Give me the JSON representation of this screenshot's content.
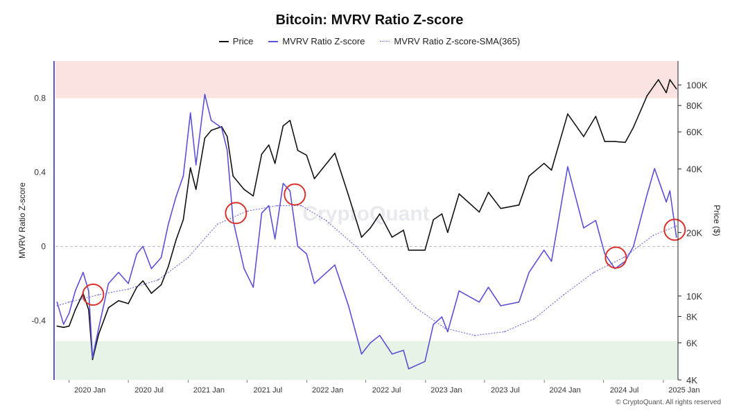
{
  "chart_data": {
    "type": "line",
    "title": "Bitcoin: MVRV Ratio Z-score",
    "ylabel": "MVRV Ratio Z-score",
    "y2label": "Price ($)",
    "ylim": [
      -0.72,
      1.0
    ],
    "y2lim_log": [
      4000,
      130000
    ],
    "xlim": [
      "2019-11-20",
      "2025-02-15"
    ],
    "x_ticks": [
      {
        "date": "2020-01-01",
        "label": "2020 Jan"
      },
      {
        "date": "2020-07-01",
        "label": "2020 Jul"
      },
      {
        "date": "2021-01-01",
        "label": "2021 Jan"
      },
      {
        "date": "2021-07-01",
        "label": "2021 Jul"
      },
      {
        "date": "2022-01-01",
        "label": "2022 Jan"
      },
      {
        "date": "2022-07-01",
        "label": "2022 Jul"
      },
      {
        "date": "2023-01-01",
        "label": "2023 Jan"
      },
      {
        "date": "2023-07-01",
        "label": "2023 Jul"
      },
      {
        "date": "2024-01-01",
        "label": "2024 Jan"
      },
      {
        "date": "2024-07-01",
        "label": "2024 Jul"
      },
      {
        "date": "2025-01-01",
        "label": "2025 Jan"
      }
    ],
    "y_ticks": [
      {
        "value": 0.8,
        "label": "0.8"
      },
      {
        "value": 0.4,
        "label": "0.4"
      },
      {
        "value": 0,
        "label": "0"
      },
      {
        "value": -0.4,
        "label": "-0.4"
      }
    ],
    "y2_ticks": [
      {
        "value": 100000,
        "label": "100K"
      },
      {
        "value": 80000,
        "label": "80K"
      },
      {
        "value": 60000,
        "label": "60K"
      },
      {
        "value": 40000,
        "label": "40K"
      },
      {
        "value": 20000,
        "label": "20K"
      },
      {
        "value": 10000,
        "label": "10K"
      },
      {
        "value": 8000,
        "label": "8K"
      },
      {
        "value": 6000,
        "label": "6K"
      },
      {
        "value": 4000,
        "label": "4K"
      }
    ],
    "bands": [
      {
        "name": "high",
        "from": 0.8,
        "to": 1.0,
        "color": "#fbe3e1"
      },
      {
        "name": "low",
        "from": -0.72,
        "to": -0.51,
        "color": "#e6f4e8"
      }
    ],
    "legend_position": "top-center",
    "series": [
      {
        "name": "Price",
        "axis": "right",
        "color": "#111111",
        "points": [
          [
            "2019-11-25",
            7200
          ],
          [
            "2019-12-15",
            7100
          ],
          [
            "2020-01-01",
            7200
          ],
          [
            "2020-01-20",
            8600
          ],
          [
            "2020-02-13",
            10300
          ],
          [
            "2020-03-01",
            8600
          ],
          [
            "2020-03-13",
            5000
          ],
          [
            "2020-04-01",
            6600
          ],
          [
            "2020-05-01",
            8800
          ],
          [
            "2020-06-01",
            9500
          ],
          [
            "2020-07-01",
            9200
          ],
          [
            "2020-07-27",
            11000
          ],
          [
            "2020-08-15",
            11800
          ],
          [
            "2020-09-10",
            10300
          ],
          [
            "2020-10-10",
            11300
          ],
          [
            "2020-11-01",
            13800
          ],
          [
            "2020-11-25",
            18500
          ],
          [
            "2020-12-17",
            23000
          ],
          [
            "2021-01-08",
            40500
          ],
          [
            "2021-01-25",
            32000
          ],
          [
            "2021-02-21",
            56000
          ],
          [
            "2021-03-13",
            61000
          ],
          [
            "2021-04-14",
            63500
          ],
          [
            "2021-05-01",
            57000
          ],
          [
            "2021-05-19",
            37000
          ],
          [
            "2021-06-22",
            32000
          ],
          [
            "2021-07-20",
            29800
          ],
          [
            "2021-08-15",
            47000
          ],
          [
            "2021-09-06",
            52000
          ],
          [
            "2021-09-25",
            42500
          ],
          [
            "2021-10-20",
            64000
          ],
          [
            "2021-11-10",
            68000
          ],
          [
            "2021-12-04",
            49000
          ],
          [
            "2021-12-31",
            46500
          ],
          [
            "2022-01-24",
            36000
          ],
          [
            "2022-03-28",
            47500
          ],
          [
            "2022-05-09",
            30000
          ],
          [
            "2022-06-18",
            19000
          ],
          [
            "2022-07-15",
            21000
          ],
          [
            "2022-08-13",
            24500
          ],
          [
            "2022-09-20",
            19000
          ],
          [
            "2022-10-25",
            20500
          ],
          [
            "2022-11-10",
            16500
          ],
          [
            "2022-12-30",
            16500
          ],
          [
            "2023-01-25",
            23000
          ],
          [
            "2023-02-20",
            24500
          ],
          [
            "2023-03-10",
            20000
          ],
          [
            "2023-04-14",
            30500
          ],
          [
            "2023-06-15",
            25000
          ],
          [
            "2023-07-13",
            31000
          ],
          [
            "2023-08-20",
            26000
          ],
          [
            "2023-10-15",
            27000
          ],
          [
            "2023-11-15",
            37000
          ],
          [
            "2023-12-31",
            42500
          ],
          [
            "2024-01-23",
            39500
          ],
          [
            "2024-03-13",
            73000
          ],
          [
            "2024-05-01",
            57000
          ],
          [
            "2024-06-07",
            71000
          ],
          [
            "2024-07-05",
            54000
          ],
          [
            "2024-08-05",
            54000
          ],
          [
            "2024-09-06",
            53500
          ],
          [
            "2024-10-01",
            63000
          ],
          [
            "2024-11-12",
            89000
          ],
          [
            "2024-12-05",
            100000
          ],
          [
            "2024-12-17",
            106000
          ],
          [
            "2025-01-10",
            92000
          ],
          [
            "2025-01-21",
            106000
          ],
          [
            "2025-02-10",
            96000
          ]
        ]
      },
      {
        "name": "MVRV Ratio Z-score",
        "axis": "left",
        "color": "#5b4fd6",
        "points": [
          [
            "2019-11-25",
            -0.3
          ],
          [
            "2019-12-15",
            -0.42
          ],
          [
            "2020-01-01",
            -0.36
          ],
          [
            "2020-01-20",
            -0.24
          ],
          [
            "2020-02-13",
            -0.14
          ],
          [
            "2020-03-01",
            -0.24
          ],
          [
            "2020-03-13",
            -0.6
          ],
          [
            "2020-04-01",
            -0.44
          ],
          [
            "2020-05-01",
            -0.2
          ],
          [
            "2020-06-01",
            -0.14
          ],
          [
            "2020-07-01",
            -0.2
          ],
          [
            "2020-07-27",
            -0.04
          ],
          [
            "2020-08-15",
            0.0
          ],
          [
            "2020-09-10",
            -0.12
          ],
          [
            "2020-10-10",
            -0.06
          ],
          [
            "2020-11-01",
            0.12
          ],
          [
            "2020-11-25",
            0.27
          ],
          [
            "2020-12-17",
            0.38
          ],
          [
            "2021-01-08",
            0.72
          ],
          [
            "2021-01-25",
            0.44
          ],
          [
            "2021-02-21",
            0.82
          ],
          [
            "2021-03-13",
            0.68
          ],
          [
            "2021-04-14",
            0.64
          ],
          [
            "2021-05-01",
            0.52
          ],
          [
            "2021-05-19",
            0.14
          ],
          [
            "2021-06-22",
            -0.12
          ],
          [
            "2021-07-20",
            -0.22
          ],
          [
            "2021-08-15",
            0.18
          ],
          [
            "2021-09-06",
            0.22
          ],
          [
            "2021-09-25",
            0.04
          ],
          [
            "2021-10-20",
            0.34
          ],
          [
            "2021-11-10",
            0.3
          ],
          [
            "2021-12-04",
            0.0
          ],
          [
            "2021-12-31",
            -0.04
          ],
          [
            "2022-01-24",
            -0.2
          ],
          [
            "2022-03-28",
            -0.1
          ],
          [
            "2022-05-09",
            -0.32
          ],
          [
            "2022-06-18",
            -0.58
          ],
          [
            "2022-07-15",
            -0.52
          ],
          [
            "2022-08-13",
            -0.48
          ],
          [
            "2022-09-20",
            -0.58
          ],
          [
            "2022-10-25",
            -0.56
          ],
          [
            "2022-11-10",
            -0.66
          ],
          [
            "2022-12-30",
            -0.62
          ],
          [
            "2023-01-25",
            -0.42
          ],
          [
            "2023-02-20",
            -0.38
          ],
          [
            "2023-03-10",
            -0.46
          ],
          [
            "2023-04-14",
            -0.24
          ],
          [
            "2023-06-15",
            -0.3
          ],
          [
            "2023-07-13",
            -0.22
          ],
          [
            "2023-08-20",
            -0.32
          ],
          [
            "2023-10-15",
            -0.3
          ],
          [
            "2023-11-15",
            -0.14
          ],
          [
            "2023-12-31",
            -0.02
          ],
          [
            "2024-01-23",
            -0.08
          ],
          [
            "2024-03-13",
            0.43
          ],
          [
            "2024-05-01",
            0.1
          ],
          [
            "2024-06-07",
            0.14
          ],
          [
            "2024-07-05",
            -0.04
          ],
          [
            "2024-08-05",
            -0.12
          ],
          [
            "2024-09-06",
            -0.08
          ],
          [
            "2024-10-01",
            0.0
          ],
          [
            "2024-11-12",
            0.28
          ],
          [
            "2024-12-05",
            0.42
          ],
          [
            "2024-12-17",
            0.36
          ],
          [
            "2025-01-10",
            0.24
          ],
          [
            "2025-01-21",
            0.3
          ],
          [
            "2025-02-10",
            0.05
          ]
        ]
      },
      {
        "name": "MVRV Ratio Z-score-SMA(365)",
        "axis": "left",
        "color": "#5b5bd6",
        "style": "dotted",
        "points": [
          [
            "2019-11-25",
            -0.32
          ],
          [
            "2020-01-01",
            -0.3
          ],
          [
            "2020-04-01",
            -0.26
          ],
          [
            "2020-07-01",
            -0.23
          ],
          [
            "2020-10-01",
            -0.18
          ],
          [
            "2021-01-01",
            -0.06
          ],
          [
            "2021-04-01",
            0.12
          ],
          [
            "2021-07-01",
            0.19
          ],
          [
            "2021-10-01",
            0.22
          ],
          [
            "2021-12-15",
            0.22
          ],
          [
            "2022-03-01",
            0.14
          ],
          [
            "2022-06-01",
            0.0
          ],
          [
            "2022-09-01",
            -0.17
          ],
          [
            "2022-12-01",
            -0.33
          ],
          [
            "2023-03-01",
            -0.44
          ],
          [
            "2023-06-01",
            -0.48
          ],
          [
            "2023-09-01",
            -0.46
          ],
          [
            "2023-12-01",
            -0.39
          ],
          [
            "2024-03-01",
            -0.26
          ],
          [
            "2024-06-01",
            -0.14
          ],
          [
            "2024-09-01",
            -0.06
          ],
          [
            "2024-12-01",
            0.06
          ],
          [
            "2025-02-10",
            0.11
          ]
        ]
      }
    ],
    "annotations": [
      {
        "type": "circle",
        "date": "2020-03-15",
        "value": -0.26,
        "color": "#d9302c"
      },
      {
        "type": "circle",
        "date": "2021-05-28",
        "value": 0.18,
        "color": "#d9302c"
      },
      {
        "type": "circle",
        "date": "2021-11-25",
        "value": 0.28,
        "color": "#d9302c"
      },
      {
        "type": "circle",
        "date": "2024-08-08",
        "value": -0.06,
        "color": "#d9302c"
      },
      {
        "type": "circle",
        "date": "2025-02-05",
        "value": 0.09,
        "color": "#d9302c"
      }
    ],
    "watermark": "CryptoQuant",
    "copyright": "© CryptoQuant. All rights reserved"
  }
}
